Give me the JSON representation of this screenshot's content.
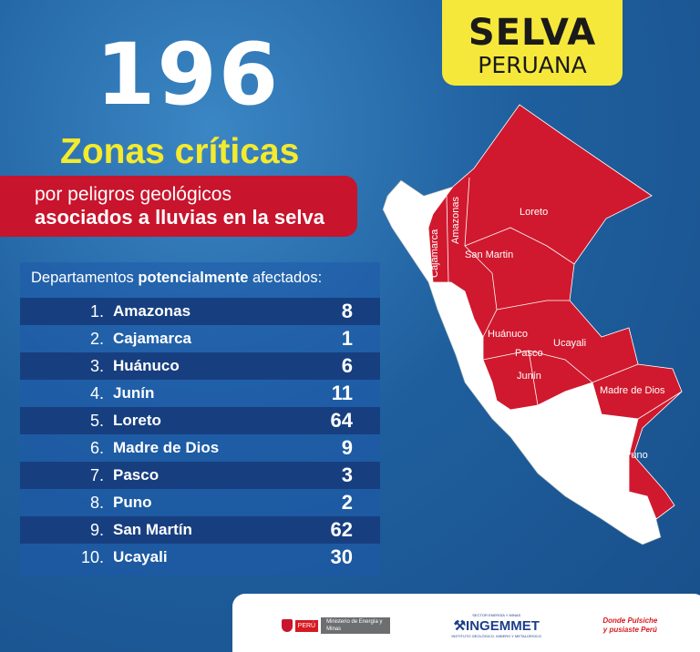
{
  "badge": {
    "line1": "SELVA",
    "line2": "PERUANA"
  },
  "headline": {
    "number": "196",
    "title": "Zonas críticas",
    "subtitle1": "por peligros  geológicos",
    "subtitle2": "asociados a lluvias en la selva"
  },
  "table": {
    "header_pre": "Departamentos ",
    "header_bold": "potencialmente",
    "header_post": " afectados:",
    "rows": [
      {
        "n": "1.",
        "name": "Amazonas",
        "value": "8"
      },
      {
        "n": "2.",
        "name": "Cajamarca",
        "value": "1"
      },
      {
        "n": "3.",
        "name": "Huánuco",
        "value": "6"
      },
      {
        "n": "4.",
        "name": "Junín",
        "value": "11"
      },
      {
        "n": "5.",
        "name": "Loreto",
        "value": "64"
      },
      {
        "n": "6.",
        "name": "Madre de Dios",
        "value": "9"
      },
      {
        "n": "7.",
        "name": "Pasco",
        "value": "3"
      },
      {
        "n": "8.",
        "name": "Puno",
        "value": "2"
      },
      {
        "n": "9.",
        "name": "San Martín",
        "value": "62"
      },
      {
        "n": "10.",
        "name": "Ucayali",
        "value": "30"
      }
    ]
  },
  "map": {
    "labels": [
      "Loreto",
      "Amazonas",
      "Cajamarca",
      "San Martin",
      "Huánuco",
      "Pasco",
      "Ucayali",
      "Junín",
      "Madre de Dios",
      "Puno"
    ],
    "colors": {
      "affected": "#d0192e",
      "other": "#ffffff"
    }
  },
  "footer": {
    "logo1_peru": "PERÚ",
    "logo1_ministry": "Ministerio de Energía y Minas",
    "logo2_top": "SECTOR ENERGÍA Y MINAS",
    "logo2_main": "INGEMMET",
    "logo2_sub": "INSTITUTO GEOLÓGICO, MINERO Y METALÚRGICO",
    "logo3": "Donde Pulsiche y pusiaste Perú"
  }
}
